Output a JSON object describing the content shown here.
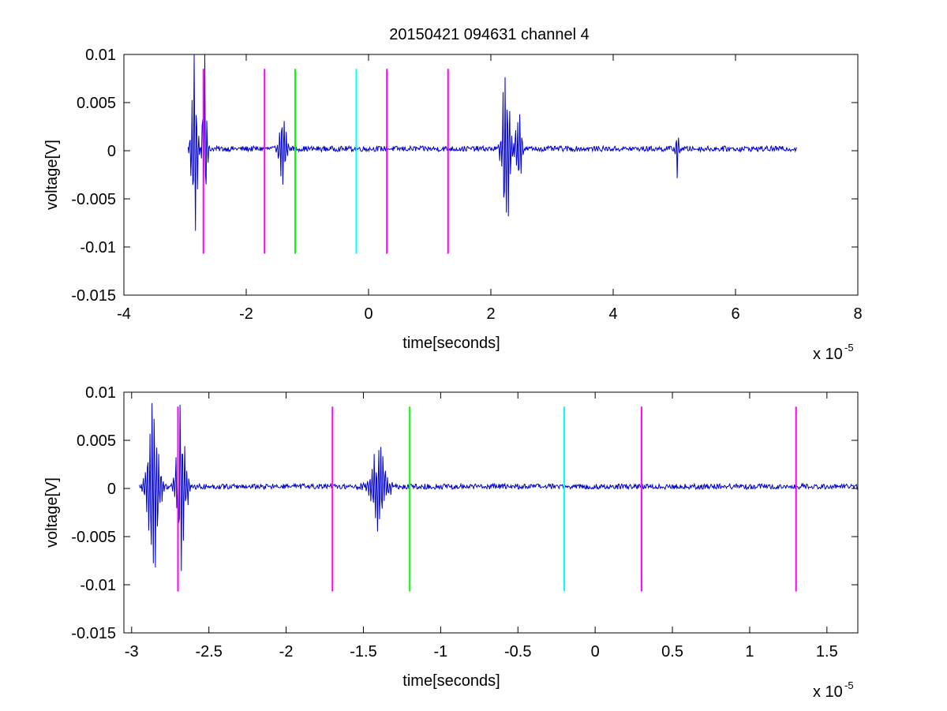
{
  "figure": {
    "title": "20150421 094631 channel 4"
  },
  "chart_data": [
    {
      "type": "line",
      "title": "20150421 094631 channel 4",
      "xlabel": "time[seconds]",
      "ylabel": "voltage[V]",
      "x_multiplier_label": "x 10",
      "x_multiplier_exp": "-5",
      "xlim": [
        -4,
        8
      ],
      "ylim": [
        -0.015,
        0.01
      ],
      "xticks": [
        -4,
        -2,
        0,
        2,
        4,
        6,
        8
      ],
      "xtick_labels": [
        "-4",
        "-2",
        "0",
        "2",
        "4",
        "6",
        "8"
      ],
      "yticks": [
        -0.015,
        -0.01,
        -0.005,
        0,
        0.005,
        0.01
      ],
      "ytick_labels": [
        "-0.015",
        "-0.01",
        "-0.005",
        "0",
        "0.005",
        "0.01"
      ],
      "grid": false,
      "signal": {
        "color": "#0000cc",
        "x_range": [
          -2.95,
          7.0
        ],
        "baseline_noise": 0.0004,
        "bursts": [
          {
            "x": -2.85,
            "amp": 0.0098,
            "width": 0.08
          },
          {
            "x": -2.68,
            "amp": 0.0088,
            "width": 0.06
          },
          {
            "x": -1.4,
            "amp": 0.0038,
            "width": 0.1
          },
          {
            "x": 2.25,
            "amp": 0.0095,
            "width": 0.1
          },
          {
            "x": 2.45,
            "amp": 0.0055,
            "width": 0.08
          },
          {
            "x": 5.05,
            "amp": 0.0028,
            "width": 0.04
          }
        ]
      },
      "markers": [
        {
          "x": -2.7,
          "ymin": -0.0107,
          "ymax": 0.0085,
          "color": "#ff00ff"
        },
        {
          "x": -1.7,
          "ymin": -0.0107,
          "ymax": 0.0085,
          "color": "#ff00ff"
        },
        {
          "x": -1.2,
          "ymin": -0.0107,
          "ymax": 0.0085,
          "color": "#00ff00"
        },
        {
          "x": -0.2,
          "ymin": -0.0107,
          "ymax": 0.0085,
          "color": "#00ffff"
        },
        {
          "x": 0.3,
          "ymin": -0.0107,
          "ymax": 0.0085,
          "color": "#ff00ff"
        },
        {
          "x": 1.3,
          "ymin": -0.0107,
          "ymax": 0.0085,
          "color": "#ff00ff"
        }
      ]
    },
    {
      "type": "line",
      "title": "",
      "xlabel": "time[seconds]",
      "ylabel": "voltage[V]",
      "x_multiplier_label": "x 10",
      "x_multiplier_exp": "-5",
      "xlim": [
        -3.05,
        1.7
      ],
      "ylim": [
        -0.015,
        0.01
      ],
      "xticks": [
        -3,
        -2.5,
        -2,
        -1.5,
        -1,
        -0.5,
        0,
        0.5,
        1,
        1.5
      ],
      "xtick_labels": [
        "-3",
        "-2.5",
        "-2",
        "-1.5",
        "-1",
        "-0.5",
        "0",
        "0.5",
        "1",
        "1.5"
      ],
      "yticks": [
        -0.015,
        -0.01,
        -0.005,
        0,
        0.005,
        0.01
      ],
      "ytick_labels": [
        "-0.015",
        "-0.01",
        "-0.005",
        "0",
        "0.005",
        "0.01"
      ],
      "grid": false,
      "signal": {
        "color": "#0000cc",
        "x_range": [
          -2.95,
          1.7
        ],
        "baseline_noise": 0.0004,
        "bursts": [
          {
            "x": -2.86,
            "amp": 0.0098,
            "width": 0.06
          },
          {
            "x": -2.68,
            "amp": 0.0088,
            "width": 0.05
          },
          {
            "x": -1.4,
            "amp": 0.0042,
            "width": 0.08
          }
        ]
      },
      "markers": [
        {
          "x": -2.7,
          "ymin": -0.0107,
          "ymax": 0.0085,
          "color": "#ff00ff"
        },
        {
          "x": -1.7,
          "ymin": -0.0107,
          "ymax": 0.0085,
          "color": "#ff00ff"
        },
        {
          "x": -1.2,
          "ymin": -0.0107,
          "ymax": 0.0085,
          "color": "#00ff00"
        },
        {
          "x": -0.2,
          "ymin": -0.0107,
          "ymax": 0.0085,
          "color": "#00ffff"
        },
        {
          "x": 0.3,
          "ymin": -0.0107,
          "ymax": 0.0085,
          "color": "#ff00ff"
        },
        {
          "x": 1.3,
          "ymin": -0.0107,
          "ymax": 0.0085,
          "color": "#ff00ff"
        }
      ]
    }
  ]
}
